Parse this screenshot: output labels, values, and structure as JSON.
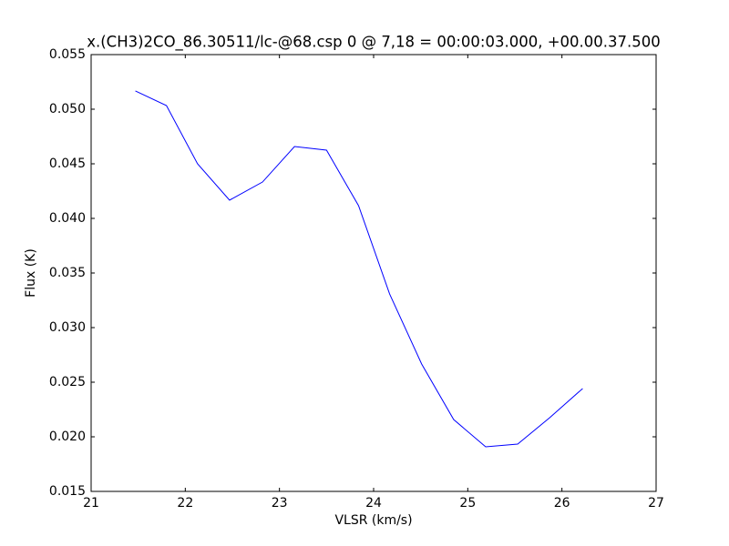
{
  "chart_data": {
    "type": "line",
    "title": "x.(CH3)2CO_86.30511/lc-@68.csp 0 @ 7,18 = 00:00:03.000, +00.00.37.500",
    "x_label": "VLSR (km/s)",
    "y_label": "Flux (K)",
    "x": [
      21.47,
      21.8,
      22.13,
      22.47,
      22.82,
      23.16,
      23.5,
      23.84,
      24.17,
      24.51,
      24.85,
      25.19,
      25.53,
      25.87,
      26.22
    ],
    "series": [
      {
        "color": "#0000ff",
        "values": [
          0.05167,
          0.05033,
          0.045,
          0.04167,
          0.04333,
          0.04658,
          0.04625,
          0.04117,
          0.03308,
          0.02667,
          0.02158,
          0.01908,
          0.01933,
          0.02175,
          0.02442
        ]
      }
    ],
    "xlim": [
      21,
      27
    ],
    "xticks": [
      21,
      22,
      23,
      24,
      25,
      26,
      27
    ],
    "ylim": [
      0.015,
      0.055
    ],
    "yticks": [
      0.015,
      {
        "value": 0.02,
        "label": "0.020"
      },
      0.025,
      {
        "value": 0.03,
        "label": "0.030"
      },
      0.035,
      {
        "value": 0.04,
        "label": "0.040"
      },
      0.045,
      {
        "value": 0.05,
        "label": "0.050"
      },
      0.055
    ],
    "grid": false
  }
}
